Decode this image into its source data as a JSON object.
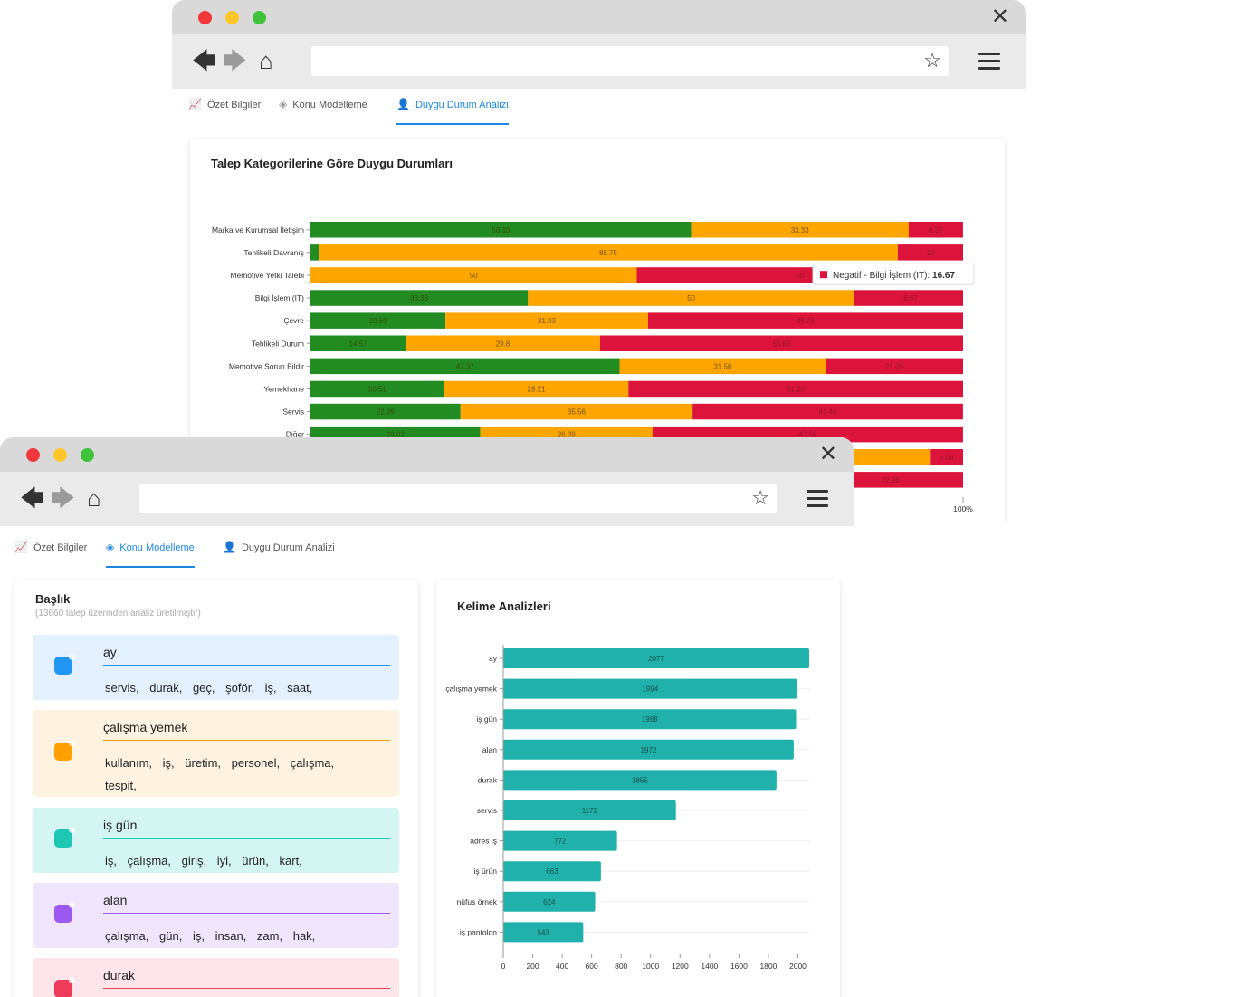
{
  "back_window": {
    "tabs": [
      {
        "label": "Özet Bilgiler",
        "icon": "chart-line-icon",
        "active": false
      },
      {
        "label": "Konu Modelleme",
        "icon": "layers-icon",
        "active": false
      },
      {
        "label": "Duygu Durum Analizi",
        "icon": "user-icon",
        "active": true
      }
    ],
    "card_title": "Talep Kategorilerine Göre Duygu Durumları",
    "tooltip": {
      "label": "Negatif - Bilgi İşlem (IT): ",
      "value": "16.67",
      "color": "#dc143c"
    }
  },
  "front_window": {
    "tabs": [
      {
        "label": "Özet Bilgiler",
        "icon": "chart-line-icon",
        "active": false
      },
      {
        "label": "Konu Modelleme",
        "icon": "layers-icon",
        "active": true
      },
      {
        "label": "Duygu Durum Analizi",
        "icon": "user-icon",
        "active": false
      }
    ],
    "topics_card": {
      "title": "Başlık",
      "subtitle": "(13660 talep üzerinden analiz üretilmiştir)",
      "topics": [
        {
          "title": "ay",
          "words": [
            "servis,",
            "durak,",
            "geç,",
            "şoför,",
            "iş,",
            "saat,"
          ],
          "bg": "#e3f0fd",
          "accent": "#2196f3"
        },
        {
          "title": "çalışma yemek",
          "words": [
            "kullanım,",
            "iş,",
            "üretim,",
            "personel,",
            "çalışma,",
            "tespit,"
          ],
          "bg": "#fef3e0",
          "accent": "#ffa000"
        },
        {
          "title": "iş gün",
          "words": [
            "iş,",
            "çalışma,",
            "giriş,",
            "iyi,",
            "ürün,",
            "kart,"
          ],
          "bg": "#d4f6f2",
          "accent": "#1ec6b4"
        },
        {
          "title": "alan",
          "words": [
            "çalışma,",
            "gün,",
            "iş,",
            "insan,",
            "zam,",
            "hak,"
          ],
          "bg": "#efe6fd",
          "accent": "#9c5af0"
        },
        {
          "title": "durak",
          "words": [],
          "bg": "#fde5ea",
          "accent": "#ef3b5a"
        }
      ]
    },
    "words_card": {
      "title": "Kelime Analizleri"
    }
  },
  "chart_data": [
    {
      "type": "bar",
      "orientation": "horizontal",
      "stacked": "percent",
      "categories": [
        "Marka ve Kurumsal İletişim",
        "Tehlikeli Davranış",
        "Memotive Yetki Talebi",
        "Bilgi İşlem (IT)",
        "Çevre",
        "Tehlikeli Durum",
        "Memotive Sorun Bildir",
        "Yemekhane",
        "Servis",
        "Diğer"
      ],
      "series": [
        {
          "name": "",
          "color": "#228b22",
          "values": [
            58.33,
            1.25,
            0,
            33.33,
            20.69,
            14.57,
            47.37,
            20.51,
            22.99,
            26.02
          ]
        },
        {
          "name": "",
          "color": "#ffa500",
          "values": [
            33.33,
            88.75,
            50,
            50,
            31.03,
            29.8,
            31.58,
            28.21,
            35.56,
            26.39
          ]
        },
        {
          "name": "Negatif",
          "color": "#dc143c",
          "values": [
            8.33,
            10,
            50,
            16.67,
            48.28,
            55.63,
            21.05,
            51.28,
            41.44,
            47.58
          ]
        }
      ],
      "extra_rows": [
        {
          "values": [
            null,
            null,
            5.09
          ]
        },
        {
          "values": [
            null,
            null,
            22.26
          ]
        }
      ],
      "xlim": [
        0,
        100
      ],
      "x_tick_label": "100%",
      "show_data_labels": true
    },
    {
      "type": "bar",
      "orientation": "horizontal",
      "categories": [
        "ay",
        "çalışma yemek",
        "iş gün",
        "alan",
        "durak",
        "servis",
        "adres iş",
        "iş ürün",
        "nüfus örnek",
        "iş pantolon"
      ],
      "values": [
        2077,
        1994,
        1988,
        1972,
        1855,
        1172,
        772,
        663,
        624,
        543
      ],
      "color": "#20b2aa",
      "xlim": [
        0,
        2077
      ],
      "xticks": [
        0,
        200,
        400,
        600,
        800,
        1000,
        1200,
        1400,
        1600,
        1800,
        2000
      ]
    }
  ]
}
